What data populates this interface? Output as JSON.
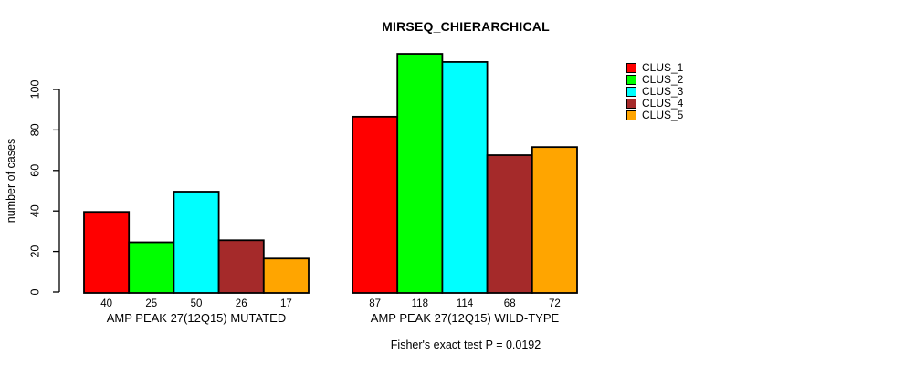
{
  "chart_data": {
    "type": "bar",
    "title": "MIRSEQ_CHIERARCHICAL",
    "ylabel": "number of cases",
    "xlabel": "",
    "ylim": [
      0,
      100
    ],
    "yticks": [
      0,
      20,
      40,
      60,
      80,
      100
    ],
    "grid": false,
    "legend_position": "right",
    "categories": [
      "AMP PEAK 27(12Q15) MUTATED",
      "AMP PEAK 27(12Q15) WILD-TYPE"
    ],
    "series": [
      {
        "name": "CLUS_1",
        "color": "#FF0000",
        "values": [
          40,
          87
        ]
      },
      {
        "name": "CLUS_2",
        "color": "#00FF00",
        "values": [
          25,
          118
        ]
      },
      {
        "name": "CLUS_3",
        "color": "#00FFFF",
        "values": [
          50,
          114
        ]
      },
      {
        "name": "CLUS_4",
        "color": "#A52A2A",
        "values": [
          26,
          68
        ]
      },
      {
        "name": "CLUS_5",
        "color": "#FFA500",
        "values": [
          17,
          72
        ]
      }
    ],
    "bar_value_labels": true,
    "annotation": "Fisher's exact test P = 0.0192"
  }
}
